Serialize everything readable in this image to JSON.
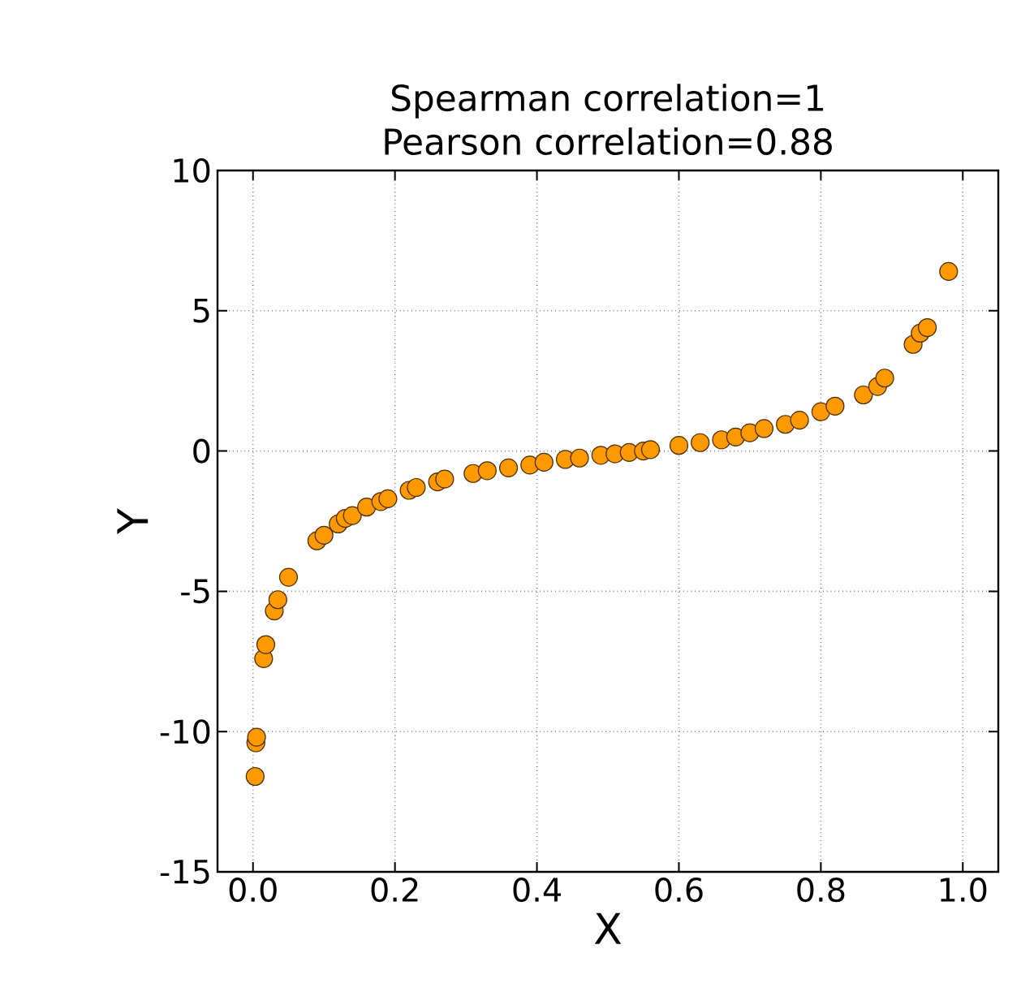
{
  "chart_data": {
    "type": "scatter",
    "title": "Spearman correlation=1",
    "subtitle": "Pearson correlation=0.88",
    "xlabel": "X",
    "ylabel": "Y",
    "xlim": [
      -0.05,
      1.05
    ],
    "ylim": [
      -15,
      10
    ],
    "xticks": [
      {
        "value": 0,
        "label": "0.0"
      },
      0.2,
      0.4,
      0.6,
      0.8,
      {
        "value": 1,
        "label": "1.0"
      }
    ],
    "yticks": [
      -15,
      -10,
      -5,
      0,
      5,
      10
    ],
    "grid": true,
    "marker": "circle",
    "series": [
      {
        "color": "#ff9900",
        "x": [
          0.003,
          0.004,
          0.005,
          0.015,
          0.018,
          0.03,
          0.035,
          0.05,
          0.09,
          0.1,
          0.12,
          0.13,
          0.14,
          0.16,
          0.18,
          0.19,
          0.22,
          0.23,
          0.26,
          0.27,
          0.31,
          0.33,
          0.36,
          0.39,
          0.41,
          0.44,
          0.46,
          0.49,
          0.51,
          0.53,
          0.55,
          0.56,
          0.6,
          0.63,
          0.66,
          0.68,
          0.7,
          0.72,
          0.75,
          0.77,
          0.8,
          0.82,
          0.86,
          0.88,
          0.89,
          0.93,
          0.94,
          0.95,
          0.98
        ],
        "values": [
          -11.6,
          -10.4,
          -10.2,
          -7.4,
          -6.9,
          -5.7,
          -5.3,
          -4.5,
          -3.2,
          -3.0,
          -2.6,
          -2.4,
          -2.3,
          -2.0,
          -1.8,
          -1.7,
          -1.4,
          -1.3,
          -1.1,
          -1.0,
          -0.8,
          -0.7,
          -0.6,
          -0.5,
          -0.4,
          -0.3,
          -0.25,
          -0.15,
          -0.1,
          -0.05,
          0.0,
          0.05,
          0.2,
          0.3,
          0.4,
          0.5,
          0.65,
          0.8,
          0.95,
          1.1,
          1.4,
          1.6,
          2.0,
          2.3,
          2.6,
          3.8,
          4.2,
          4.4,
          6.4
        ]
      }
    ]
  }
}
